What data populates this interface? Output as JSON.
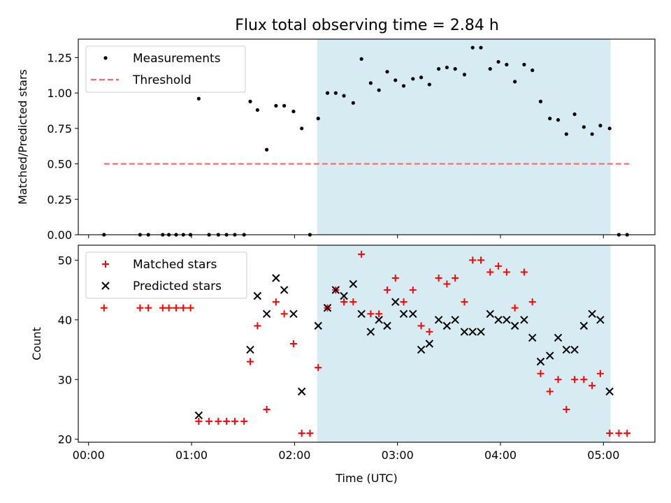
{
  "chart_data": [
    {
      "type": "scatter",
      "title": "Flux total observing time = 2.84 h",
      "xlabel": "",
      "ylabel": "Matched/Predicted stars",
      "xlim": [
        -0.1,
        5.5
      ],
      "ylim": [
        0,
        1.38
      ],
      "x_ticks": [
        0,
        1,
        2,
        3,
        4,
        5
      ],
      "x_tick_labels": [
        "",
        "",
        "",
        "",
        "",
        ""
      ],
      "y_ticks": [
        0.0,
        0.25,
        0.5,
        0.75,
        1.0,
        1.25
      ],
      "y_tick_labels": [
        "0.00",
        "0.25",
        "0.50",
        "0.75",
        "1.00",
        "1.25"
      ],
      "shaded_span": {
        "x_start": 2.22,
        "x_end": 5.07,
        "color": "#add8e6"
      },
      "legend": {
        "position": "top-left"
      },
      "threshold": {
        "name": "Threshold",
        "y": 0.5,
        "x_start": 0.15,
        "x_end": 5.25,
        "color": "#ff6666",
        "style": "dashed"
      },
      "series": [
        {
          "name": "Measurements",
          "marker": "dot",
          "color": "#000000",
          "x": [
            0.15,
            0.5,
            0.58,
            0.72,
            0.78,
            0.85,
            0.92,
            0.99,
            1.07,
            1.17,
            1.26,
            1.34,
            1.42,
            1.51,
            1.57,
            1.64,
            1.73,
            1.82,
            1.9,
            1.99,
            2.07,
            2.15,
            2.23,
            2.32,
            2.4,
            2.48,
            2.57,
            2.65,
            2.74,
            2.82,
            2.9,
            2.98,
            3.06,
            3.15,
            3.23,
            3.31,
            3.4,
            3.48,
            3.56,
            3.65,
            3.73,
            3.81,
            3.9,
            3.98,
            4.06,
            4.14,
            4.23,
            4.31,
            4.39,
            4.48,
            4.56,
            4.64,
            4.72,
            4.81,
            4.89,
            4.97,
            5.06,
            5.15,
            5.23
          ],
          "values": [
            0.0,
            0.0,
            0.0,
            0.0,
            0.0,
            0.0,
            0.0,
            0.0,
            0.96,
            0.0,
            0.0,
            0.0,
            0.0,
            0.0,
            0.94,
            0.88,
            0.6,
            0.91,
            0.91,
            0.87,
            0.75,
            0.0,
            0.82,
            1.0,
            1.0,
            0.98,
            0.93,
            1.24,
            1.07,
            1.02,
            1.15,
            1.09,
            1.05,
            1.1,
            1.11,
            1.06,
            1.17,
            1.18,
            1.17,
            1.13,
            1.32,
            1.32,
            1.17,
            1.22,
            1.2,
            1.08,
            1.2,
            1.16,
            0.94,
            0.82,
            0.81,
            0.71,
            0.85,
            0.76,
            0.71,
            0.77,
            0.75,
            0.0,
            0.0
          ]
        }
      ]
    },
    {
      "type": "scatter",
      "title": "",
      "xlabel": "Time (UTC)",
      "ylabel": "Count",
      "xlim": [
        -0.1,
        5.5
      ],
      "ylim": [
        19.5,
        52.5
      ],
      "x_ticks": [
        0,
        1,
        2,
        3,
        4,
        5
      ],
      "x_tick_labels": [
        "00:00",
        "01:00",
        "02:00",
        "03:00",
        "04:00",
        "05:00"
      ],
      "y_ticks": [
        20,
        30,
        40,
        50
      ],
      "y_tick_labels": [
        "20",
        "30",
        "40",
        "50"
      ],
      "shaded_span": {
        "x_start": 2.22,
        "x_end": 5.07,
        "color": "#add8e6"
      },
      "legend": {
        "position": "top-left"
      },
      "series": [
        {
          "name": "Matched stars",
          "marker": "plus",
          "color": "#ff0000",
          "x": [
            0.15,
            0.5,
            0.58,
            0.72,
            0.78,
            0.85,
            0.92,
            0.99,
            1.07,
            1.17,
            1.26,
            1.34,
            1.42,
            1.51,
            1.57,
            1.64,
            1.73,
            1.82,
            1.9,
            1.99,
            2.07,
            2.15,
            2.23,
            2.32,
            2.4,
            2.48,
            2.57,
            2.65,
            2.74,
            2.82,
            2.9,
            2.98,
            3.06,
            3.15,
            3.23,
            3.31,
            3.4,
            3.48,
            3.56,
            3.65,
            3.73,
            3.81,
            3.9,
            3.98,
            4.06,
            4.14,
            4.23,
            4.31,
            4.39,
            4.48,
            4.56,
            4.64,
            4.72,
            4.81,
            4.89,
            4.97,
            5.06,
            5.15,
            5.23
          ],
          "values": [
            42,
            42,
            42,
            42,
            42,
            42,
            42,
            42,
            23,
            23,
            23,
            23,
            23,
            23,
            33,
            39,
            25,
            43,
            41,
            36,
            21,
            21,
            32,
            42,
            45,
            43,
            43,
            51,
            41,
            41,
            45,
            47,
            43,
            45,
            39,
            38,
            47,
            46,
            47,
            43,
            50,
            50,
            48,
            49,
            48,
            42,
            48,
            43,
            31,
            28,
            30,
            25,
            30,
            30,
            29,
            31,
            21,
            21,
            21
          ]
        },
        {
          "name": "Predicted stars",
          "marker": "x",
          "color": "#000000",
          "x": [
            1.07,
            1.57,
            1.64,
            1.73,
            1.82,
            1.9,
            1.99,
            2.07,
            2.23,
            2.32,
            2.4,
            2.48,
            2.57,
            2.65,
            2.74,
            2.82,
            2.9,
            2.98,
            3.06,
            3.15,
            3.23,
            3.31,
            3.4,
            3.48,
            3.56,
            3.65,
            3.73,
            3.81,
            3.9,
            3.98,
            4.06,
            4.14,
            4.23,
            4.31,
            4.39,
            4.48,
            4.56,
            4.64,
            4.72,
            4.81,
            4.89,
            4.97,
            5.06
          ],
          "values": [
            24,
            35,
            44,
            41,
            47,
            45,
            41,
            28,
            39,
            42,
            45,
            44,
            46,
            41,
            38,
            40,
            39,
            43,
            41,
            41,
            35,
            36,
            40,
            39,
            40,
            38,
            38,
            38,
            41,
            40,
            40,
            39,
            40,
            37,
            33,
            34,
            37,
            35,
            35,
            39,
            41,
            40,
            28
          ]
        }
      ]
    }
  ]
}
